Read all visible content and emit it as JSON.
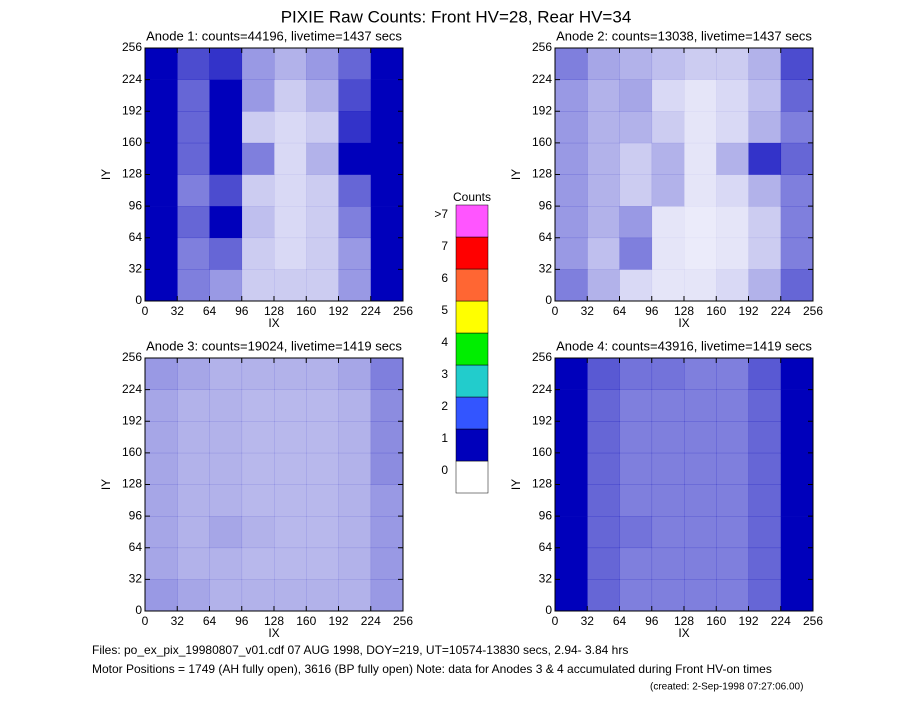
{
  "title": "PIXIE Raw Counts:  Front HV=28, Rear HV=34",
  "colorbar": {
    "title": "Counts",
    "ticks": [
      0,
      1,
      2,
      3,
      4,
      5,
      6,
      7,
      {
        "value": 8,
        "label": ">7"
      }
    ],
    "colors": [
      "#ffffff",
      "#0000bb",
      "#3355ff",
      "#22cccc",
      "#00ee00",
      "#ffff00",
      "#ff6633",
      "#ff0000",
      "#ff55ff"
    ]
  },
  "footer": {
    "files": "Files: po_ex_pix_19980807_v01.cdf    07 AUG 1998, DOY=219, UT=10574-13830 secs,  2.94- 3.84 hrs",
    "motor": "Motor Positions = 1749 (AH fully open), 3616 (BP fully open)    Note: data for Anodes 3 & 4 accumulated during Front HV-on times",
    "created": "(created:  2-Sep-1998 07:27:06.00)"
  },
  "chart_data": [
    {
      "type": "heatmap",
      "title": "Anode 1: counts=44196, livetime=1437 secs",
      "xlabel": "IX",
      "ylabel": "IY",
      "xlim": [
        0,
        256
      ],
      "ylim": [
        0,
        256
      ],
      "xticks": [
        0,
        32,
        64,
        96,
        128,
        160,
        192,
        224,
        256
      ],
      "yticks": [
        0,
        32,
        64,
        96,
        128,
        160,
        192,
        224,
        256
      ],
      "z": [
        [
          1.6,
          0.5,
          0.4,
          0.2,
          0.2,
          0.2,
          0.4,
          1.0
        ],
        [
          1.5,
          0.5,
          0.6,
          0.2,
          0.15,
          0.2,
          0.4,
          1.0
        ],
        [
          1.6,
          0.6,
          1.0,
          0.25,
          0.15,
          0.2,
          0.5,
          1.1
        ],
        [
          1.4,
          0.5,
          0.7,
          0.2,
          0.15,
          0.2,
          0.6,
          1.1
        ],
        [
          1.3,
          0.6,
          1.2,
          0.5,
          0.15,
          0.3,
          1.6,
          1.2
        ],
        [
          1.4,
          0.6,
          1.0,
          0.2,
          0.15,
          0.2,
          0.8,
          1.1
        ],
        [
          1.5,
          0.6,
          1.1,
          0.4,
          0.2,
          0.3,
          0.7,
          1.0
        ],
        [
          1.6,
          0.7,
          0.8,
          0.4,
          0.3,
          0.4,
          0.6,
          1.1
        ]
      ]
    },
    {
      "type": "heatmap",
      "title": "Anode 2: counts=13038, livetime=1437 secs",
      "xlabel": "IX",
      "ylabel": "IY",
      "xlim": [
        0,
        256
      ],
      "ylim": [
        0,
        256
      ],
      "xticks": [
        0,
        32,
        64,
        96,
        128,
        160,
        192,
        224,
        256
      ],
      "yticks": [
        0,
        32,
        64,
        96,
        128,
        160,
        192,
        224,
        256
      ],
      "z": [
        [
          0.5,
          0.3,
          0.15,
          0.1,
          0.1,
          0.15,
          0.3,
          0.6
        ],
        [
          0.4,
          0.25,
          0.5,
          0.1,
          0.08,
          0.1,
          0.2,
          0.5
        ],
        [
          0.4,
          0.3,
          0.4,
          0.1,
          0.08,
          0.1,
          0.2,
          0.5
        ],
        [
          0.4,
          0.3,
          0.2,
          0.3,
          0.1,
          0.15,
          0.3,
          0.5
        ],
        [
          0.4,
          0.3,
          0.2,
          0.3,
          0.1,
          0.3,
          0.8,
          0.6
        ],
        [
          0.4,
          0.3,
          0.3,
          0.2,
          0.1,
          0.15,
          0.3,
          0.5
        ],
        [
          0.4,
          0.3,
          0.35,
          0.15,
          0.1,
          0.15,
          0.25,
          0.6
        ],
        [
          0.5,
          0.35,
          0.3,
          0.25,
          0.2,
          0.2,
          0.3,
          0.7
        ]
      ]
    },
    {
      "type": "heatmap",
      "title": "Anode 3: counts=19024, livetime=1419 secs",
      "xlabel": "IX",
      "ylabel": "IY",
      "xlim": [
        0,
        256
      ],
      "ylim": [
        0,
        256
      ],
      "xticks": [
        0,
        32,
        64,
        96,
        128,
        160,
        192,
        224,
        256
      ],
      "yticks": [
        0,
        32,
        64,
        96,
        128,
        160,
        192,
        224,
        256
      ],
      "z": [
        [
          0.4,
          0.35,
          0.3,
          0.3,
          0.3,
          0.3,
          0.3,
          0.4
        ],
        [
          0.35,
          0.3,
          0.3,
          0.28,
          0.28,
          0.28,
          0.3,
          0.4
        ],
        [
          0.35,
          0.3,
          0.35,
          0.3,
          0.28,
          0.28,
          0.3,
          0.4
        ],
        [
          0.35,
          0.3,
          0.3,
          0.28,
          0.28,
          0.28,
          0.3,
          0.4
        ],
        [
          0.35,
          0.3,
          0.3,
          0.28,
          0.28,
          0.28,
          0.3,
          0.45
        ],
        [
          0.35,
          0.3,
          0.3,
          0.28,
          0.28,
          0.28,
          0.3,
          0.45
        ],
        [
          0.35,
          0.3,
          0.3,
          0.28,
          0.28,
          0.28,
          0.3,
          0.45
        ],
        [
          0.4,
          0.35,
          0.3,
          0.3,
          0.3,
          0.3,
          0.35,
          0.5
        ]
      ]
    },
    {
      "type": "heatmap",
      "title": "Anode 4: counts=43916, livetime=1419 secs",
      "xlabel": "IX",
      "ylabel": "IY",
      "xlim": [
        0,
        256
      ],
      "ylim": [
        0,
        256
      ],
      "xticks": [
        0,
        32,
        64,
        96,
        128,
        160,
        192,
        224,
        256
      ],
      "yticks": [
        0,
        32,
        64,
        96,
        128,
        160,
        192,
        224,
        256
      ],
      "z": [
        [
          1.5,
          0.6,
          0.5,
          0.5,
          0.5,
          0.5,
          0.6,
          1.5
        ],
        [
          1.6,
          0.6,
          0.5,
          0.5,
          0.5,
          0.5,
          0.6,
          1.4
        ],
        [
          1.5,
          0.6,
          0.55,
          0.5,
          0.5,
          0.5,
          0.6,
          1.5
        ],
        [
          1.4,
          0.6,
          0.5,
          0.5,
          0.5,
          0.5,
          0.6,
          1.4
        ],
        [
          1.3,
          0.6,
          0.5,
          0.5,
          0.5,
          0.5,
          0.6,
          1.3
        ],
        [
          1.3,
          0.6,
          0.5,
          0.5,
          0.5,
          0.5,
          0.6,
          1.3
        ],
        [
          1.2,
          0.6,
          0.5,
          0.5,
          0.5,
          0.5,
          0.6,
          1.4
        ],
        [
          1.3,
          0.65,
          0.55,
          0.55,
          0.5,
          0.5,
          0.65,
          1.5
        ]
      ]
    }
  ]
}
